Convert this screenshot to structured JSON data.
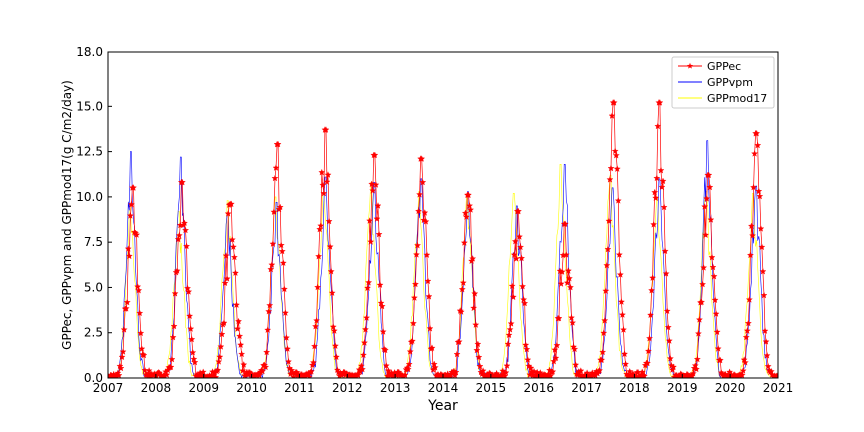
{
  "chart_data": {
    "type": "line",
    "xlabel": "Year",
    "ylabel": "GPPec, GPPvpm and GPPmod17(g C/m2/day)",
    "xlim": [
      2007,
      2021
    ],
    "ylim": [
      0,
      18
    ],
    "x_ticks": [
      "2007",
      "2008",
      "2009",
      "2010",
      "2011",
      "2012",
      "2013",
      "2014",
      "2015",
      "2016",
      "2017",
      "2018",
      "2019",
      "2020",
      "2021"
    ],
    "y_ticks": [
      "0.0",
      "2.5",
      "5.0",
      "7.5",
      "10.0",
      "12.5",
      "15.0",
      "18.0"
    ],
    "grid": false,
    "legend_position": "top-right",
    "samples_per_year": 46,
    "series": [
      {
        "name": "GPPec",
        "color": "#ff0000",
        "marker": "star",
        "annual_peaks": [
          10.5,
          10.8,
          9.6,
          12.9,
          13.7,
          12.3,
          12.1,
          10.1,
          9.2,
          8.5,
          15.2,
          15.2,
          11.2,
          13.5
        ],
        "peak_day_of_year": [
          190,
          200,
          205,
          195,
          195,
          205,
          200,
          190,
          205,
          200,
          205,
          190,
          195,
          200
        ]
      },
      {
        "name": "GPPvpm",
        "color": "#0000ff",
        "marker": "none",
        "annual_peaks": [
          12.5,
          12.2,
          9.0,
          9.7,
          11.1,
          10.8,
          11.0,
          10.3,
          9.5,
          11.8,
          10.5,
          11.0,
          13.1,
          10.6
        ],
        "peak_day_of_year": [
          175,
          190,
          180,
          190,
          200,
          205,
          195,
          190,
          200,
          195,
          195,
          190,
          190,
          195
        ]
      },
      {
        "name": "GPPmod17",
        "color": "#ffff00",
        "marker": "none",
        "annual_peaks": [
          9.5,
          9.2,
          9.8,
          10.0,
          10.2,
          10.8,
          10.3,
          10.0,
          10.2,
          11.8,
          11.2,
          10.0,
          10.3,
          10.2
        ],
        "peak_day_of_year": [
          170,
          175,
          180,
          185,
          185,
          180,
          180,
          185,
          175,
          170,
          180,
          175,
          180,
          175
        ]
      }
    ]
  }
}
